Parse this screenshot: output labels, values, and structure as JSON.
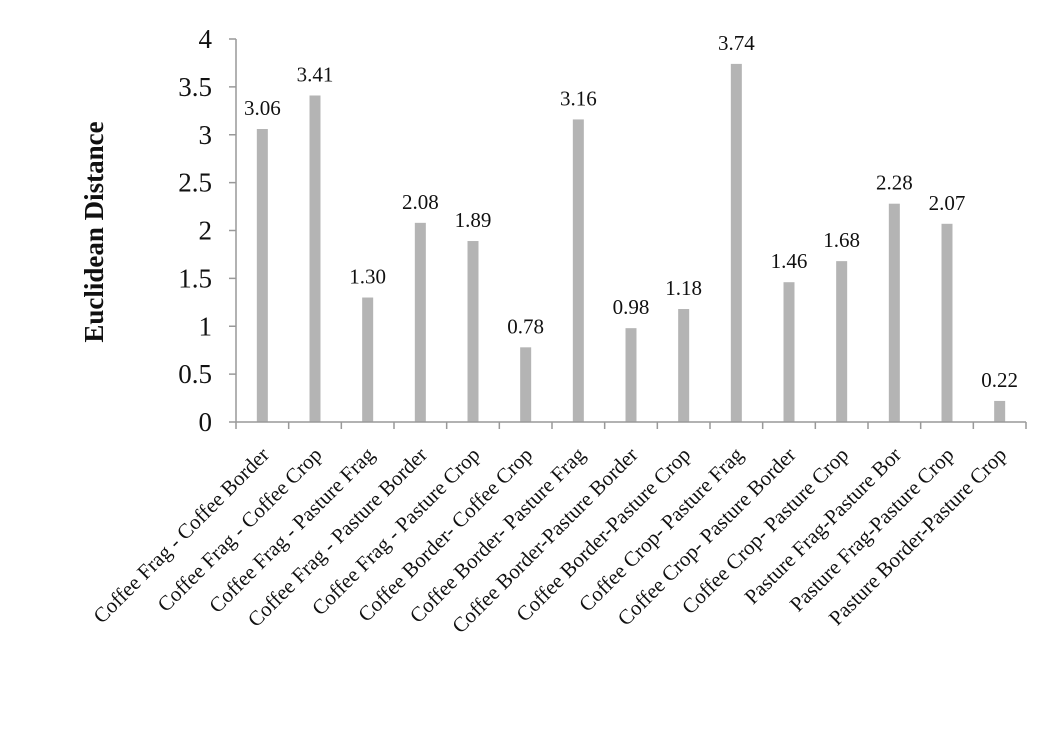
{
  "chart_data": {
    "type": "bar",
    "title": "",
    "xlabel": "",
    "ylabel": "Euclidean  Distance",
    "ylim": [
      0,
      4
    ],
    "yticks": [
      0,
      0.5,
      1,
      1.5,
      2,
      2.5,
      3,
      3.5,
      4
    ],
    "ytick_labels": [
      "0",
      "0.5",
      "1",
      "1.5",
      "2",
      "2.5",
      "3",
      "3.5",
      "4"
    ],
    "grid": false,
    "legend": "none",
    "bar_color": "#b4b4b4",
    "categories": [
      "Coffee Frag - Coffee Border",
      "Coffee Frag - Coffee Crop",
      "Coffee Frag - Pasture Frag",
      "Coffee Frag - Pasture Border",
      "Coffee Frag - Pasture Crop",
      "Coffee Border- Coffee Crop",
      "Coffee Border- Pasture  Frag",
      "Coffee Border-Pasture Border",
      "Coffee Border-Pasture Crop",
      "Coffee Crop- Pasture Frag",
      "Coffee Crop- Pasture Border",
      "Coffee Crop- Pasture Crop",
      "Pasture Frag-Pasture Bor",
      "Pasture Frag-Pasture Crop",
      "Pasture Border-Pasture Crop"
    ],
    "values": [
      3.06,
      3.41,
      1.3,
      2.08,
      1.89,
      0.78,
      3.16,
      0.98,
      1.18,
      3.74,
      1.46,
      1.68,
      2.28,
      2.07,
      0.22
    ],
    "data_labels": [
      "3.06",
      "3.41",
      "1.30",
      "2.08",
      "1.89",
      "0.78",
      "3.16",
      "0.98",
      "1.18",
      "3.74",
      "1.46",
      "1.68",
      "2.28",
      "2.07",
      "0.22"
    ]
  }
}
